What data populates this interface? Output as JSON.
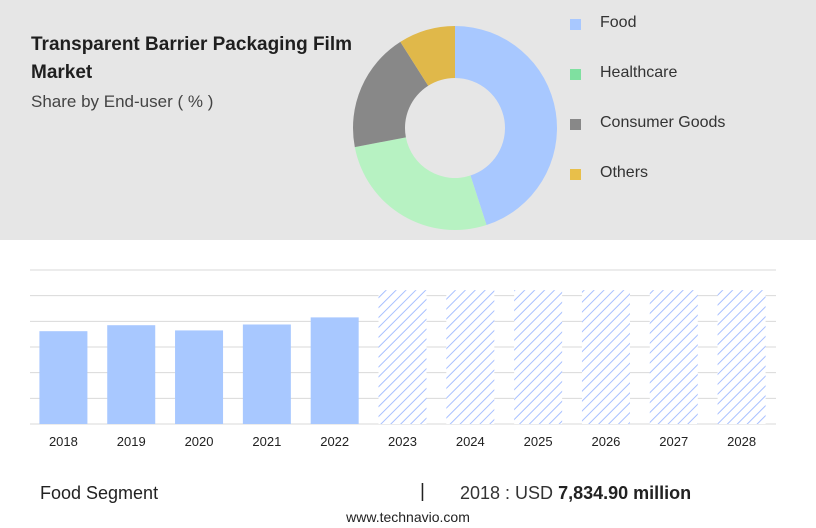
{
  "header": {
    "title": "Transparent Barrier Packaging Film Market",
    "subtitle": "Share by End-user ( % )"
  },
  "legend": [
    {
      "label": "Food",
      "color": "#a8c8ff"
    },
    {
      "label": "Healthcare",
      "color": "#7fe0a0"
    },
    {
      "label": "Consumer Goods",
      "color": "#888888"
    },
    {
      "label": "Others",
      "color": "#e8bf4a"
    }
  ],
  "footer": {
    "segment_label": "Food Segment",
    "divider": "|",
    "value_prefix": "2018 : USD",
    "value_amount": "7,834.90 million",
    "site": "www.technavio.com"
  },
  "chart_data": [
    {
      "type": "pie",
      "title": "Transparent Barrier Packaging Film Market",
      "subtitle": "Share by End-user ( % )",
      "categories": [
        "Food",
        "Healthcare",
        "Consumer Goods",
        "Others"
      ],
      "values": [
        45,
        27,
        19,
        9
      ],
      "colors": [
        "#a8c8ff",
        "#b7f2c2",
        "#888888",
        "#e0b84a"
      ]
    },
    {
      "type": "bar",
      "categories": [
        "2018",
        "2019",
        "2020",
        "2021",
        "2022",
        "2023",
        "2024",
        "2025",
        "2026",
        "2027",
        "2028"
      ],
      "values": [
        7834.9,
        8340,
        7900,
        8400,
        9000,
        11300,
        11300,
        11300,
        11300,
        11300,
        11300
      ],
      "forecast_from": "2023",
      "ylim": [
        0,
        13000
      ],
      "grid": true,
      "bar_color": "#a8c8ff",
      "forecast_color": "#a8c0ff"
    }
  ]
}
